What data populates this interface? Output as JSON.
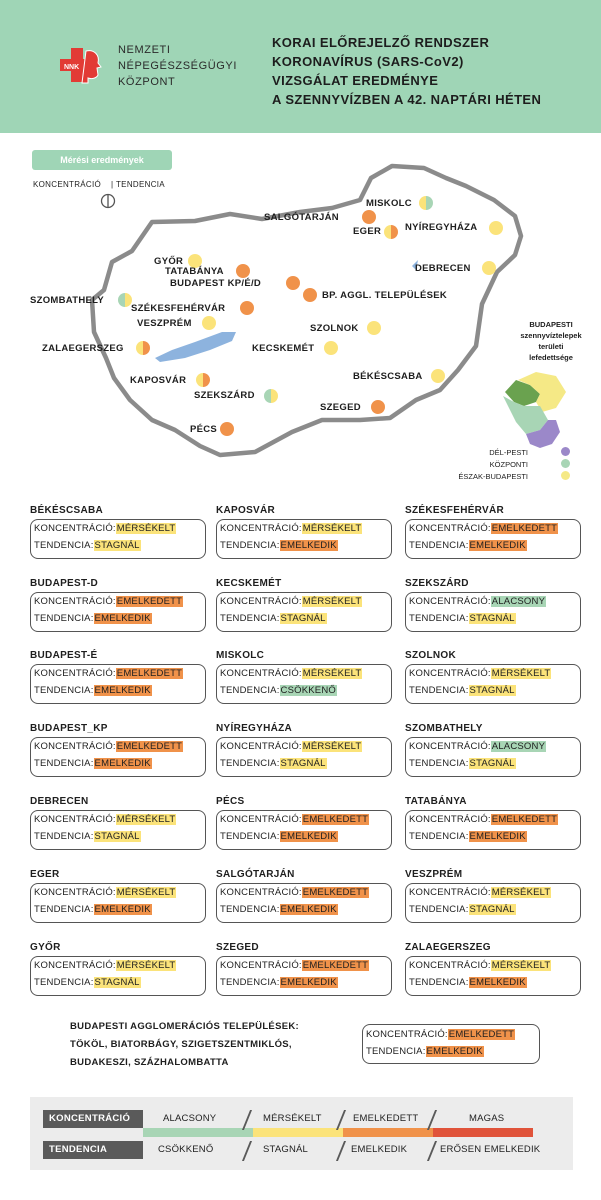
{
  "header": {
    "org": [
      "NEMZETI",
      "NÉPEGÉSZSÉGÜGYI",
      "KÖZPONT"
    ],
    "logo_text": "NNK",
    "title": [
      "KORAI ELŐREJELZŐ RENDSZER",
      "KORONAVÍRUS (SARS-CoV2)",
      "VIZSGÁLAT EREDMÉNYE",
      "A SZENNYVÍZBEN A 42. NAPTÁRI HÉTEN"
    ]
  },
  "map": {
    "section_label": "Mérési eredmények",
    "legend_left": "KONCENTRÁCIÓ",
    "legend_right": "TENDENCIA",
    "cities": [
      {
        "name": "MISKOLC",
        "c": "#fbe37a",
        "t": "#a8d5b5"
      },
      {
        "name": "SALGÓTARJÁN",
        "c": "#f0924a",
        "t": "#f0924a"
      },
      {
        "name": "EGER",
        "c": "#fbe37a",
        "t": "#f0924a"
      },
      {
        "name": "NYÍREGYHÁZA",
        "c": "#fbe37a",
        "t": "#fbe37a"
      },
      {
        "name": "GYŐR",
        "c": "#fbe37a",
        "t": "#fbe37a"
      },
      {
        "name": "TATABÁNYA",
        "c": "#f0924a",
        "t": "#f0924a"
      },
      {
        "name": "BUDAPEST KP/É/D",
        "c": "#f0924a",
        "t": "#f0924a"
      },
      {
        "name": "DEBRECEN",
        "c": "#fbe37a",
        "t": "#fbe37a"
      },
      {
        "name": "BP. AGGL. TELEPÜLÉSEK",
        "c": "#f0924a",
        "t": "#f0924a"
      },
      {
        "name": "SZOMBATHELY",
        "c": "#a8d5b5",
        "t": "#fbe37a"
      },
      {
        "name": "SZÉKESFEHÉRVÁR",
        "c": "#f0924a",
        "t": "#f0924a"
      },
      {
        "name": "VESZPRÉM",
        "c": "#fbe37a",
        "t": "#fbe37a"
      },
      {
        "name": "SZOLNOK",
        "c": "#fbe37a",
        "t": "#fbe37a"
      },
      {
        "name": "ZALAEGERSZEG",
        "c": "#fbe37a",
        "t": "#f0924a"
      },
      {
        "name": "KECSKEMÉT",
        "c": "#fbe37a",
        "t": "#fbe37a"
      },
      {
        "name": "BÉKÉSCSABA",
        "c": "#fbe37a",
        "t": "#fbe37a"
      },
      {
        "name": "KAPOSVÁR",
        "c": "#fbe37a",
        "t": "#f0924a"
      },
      {
        "name": "SZEKSZÁRD",
        "c": "#a8d5b5",
        "t": "#fbe37a"
      },
      {
        "name": "SZEGED",
        "c": "#f0924a",
        "t": "#f0924a"
      },
      {
        "name": "PÉCS",
        "c": "#f0924a",
        "t": "#f0924a"
      }
    ],
    "budapest_title": [
      "BUDAPESTI",
      "szennyvíztelepek",
      "területi",
      "lefedettsége"
    ],
    "budapest_legend": [
      {
        "label": "DÉL-PESTI",
        "color": "#9b88c9"
      },
      {
        "label": "KÖZPONTI",
        "color": "#a8d5b5"
      },
      {
        "label": "ÉSZAK-BUDAPESTI",
        "color": "#f5e986"
      }
    ]
  },
  "labels": {
    "konc": "KONCENTRÁCIÓ:",
    "tend": "TENDENCIA:"
  },
  "cards": [
    {
      "name": "BÉKÉSCSABA",
      "k": "MÉRSÉKELT",
      "kc": "y",
      "t": "STAGNÁL",
      "tc": "y"
    },
    {
      "name": "KAPOSVÁR",
      "k": "MÉRSÉKELT",
      "kc": "y",
      "t": "EMELKEDIK",
      "tc": "o"
    },
    {
      "name": "SZÉKESFEHÉRVÁR",
      "k": "EMELKEDETT",
      "kc": "o",
      "t": "EMELKEDIK",
      "tc": "o"
    },
    {
      "name": "BUDAPEST-D",
      "k": "EMELKEDETT",
      "kc": "o",
      "t": "EMELKEDIK",
      "tc": "o"
    },
    {
      "name": "KECSKEMÉT",
      "k": "MÉRSÉKELT",
      "kc": "y",
      "t": "STAGNÁL",
      "tc": "y"
    },
    {
      "name": "SZEKSZÁRD",
      "k": "ALACSONY",
      "kc": "g",
      "t": "STAGNÁL",
      "tc": "y"
    },
    {
      "name": "BUDAPEST-É",
      "k": "EMELKEDETT",
      "kc": "o",
      "t": "EMELKEDIK",
      "tc": "o"
    },
    {
      "name": "MISKOLC",
      "k": "MÉRSÉKELT",
      "kc": "y",
      "t": "CSÖKKENŐ",
      "tc": "g"
    },
    {
      "name": "SZOLNOK",
      "k": "MÉRSÉKELT",
      "kc": "y",
      "t": "STAGNÁL",
      "tc": "y"
    },
    {
      "name": "BUDAPEST_KP",
      "k": "EMELKEDETT",
      "kc": "o",
      "t": "EMELKEDIK",
      "tc": "o"
    },
    {
      "name": "NYÍREGYHÁZA",
      "k": "MÉRSÉKELT",
      "kc": "y",
      "t": "STAGNÁL",
      "tc": "y"
    },
    {
      "name": "SZOMBATHELY",
      "k": "ALACSONY",
      "kc": "g",
      "t": "STAGNÁL",
      "tc": "y"
    },
    {
      "name": "DEBRECEN",
      "k": "MÉRSÉKELT",
      "kc": "y",
      "t": "STAGNÁL",
      "tc": "y"
    },
    {
      "name": "PÉCS",
      "k": "EMELKEDETT",
      "kc": "o",
      "t": "EMELKEDIK",
      "tc": "o"
    },
    {
      "name": "TATABÁNYA",
      "k": "EMELKEDETT",
      "kc": "o",
      "t": "EMELKEDIK",
      "tc": "o"
    },
    {
      "name": "EGER",
      "k": "MÉRSÉKELT",
      "kc": "y",
      "t": "EMELKEDIK",
      "tc": "o"
    },
    {
      "name": "SALGÓTARJÁN",
      "k": "EMELKEDETT",
      "kc": "o",
      "t": "EMELKEDIK",
      "tc": "o"
    },
    {
      "name": "VESZPRÉM",
      "k": "MÉRSÉKELT",
      "kc": "y",
      "t": "STAGNÁL",
      "tc": "y"
    },
    {
      "name": "GYŐR",
      "k": "MÉRSÉKELT",
      "kc": "y",
      "t": "STAGNÁL",
      "tc": "y"
    },
    {
      "name": "SZEGED",
      "k": "EMELKEDETT",
      "kc": "o",
      "t": "EMELKEDIK",
      "tc": "o"
    },
    {
      "name": "ZALAEGERSZEG",
      "k": "MÉRSÉKELT",
      "kc": "y",
      "t": "EMELKEDIK",
      "tc": "o"
    }
  ],
  "agglomeration": {
    "lines": [
      "BUDAPESTI AGGLOMERÁCIÓS TELEPÜLÉSEK:",
      "TÖKÖL, BIATORBÁGY, SZIGETSZENTMIKLÓS,",
      "BUDAKESZI, SZÁZHALOMBATTA"
    ],
    "k": "EMELKEDETT",
    "kc": "o",
    "t": "EMELKEDIK",
    "tc": "o"
  },
  "scale": {
    "konc_title": "KONCENTRÁCIÓ",
    "tend_title": "TENDENCIA",
    "konc": [
      "ALACSONY",
      "MÉRSÉKELT",
      "EMELKEDETT",
      "MAGAS"
    ],
    "tend": [
      "CSÖKKENŐ",
      "STAGNÁL",
      "EMELKEDIK",
      "ERŐSEN EMELKEDIK"
    ],
    "colors": [
      "#a8d5b5",
      "#fbe37a",
      "#f0924a",
      "#e0533a"
    ]
  }
}
